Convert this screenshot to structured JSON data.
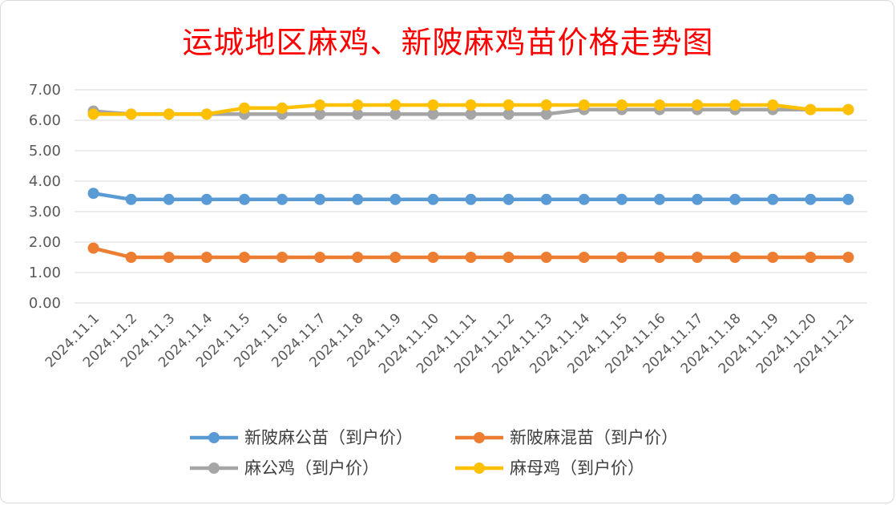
{
  "chart_data": {
    "type": "line",
    "title": "运城地区麻鸡、新陂麻鸡苗价格走势图",
    "xlabel": "",
    "ylabel": "",
    "ylim": [
      0,
      7
    ],
    "y_ticks": [
      "0.00",
      "1.00",
      "2.00",
      "3.00",
      "4.00",
      "5.00",
      "6.00",
      "7.00"
    ],
    "grid": true,
    "legend_position": "bottom",
    "categories": [
      "2024.11.1",
      "2024.11.2",
      "2024.11.3",
      "2024.11.4",
      "2024.11.5",
      "2024.11.6",
      "2024.11.7",
      "2024.11.8",
      "2024.11.9",
      "2024.11.10",
      "2024.11.11",
      "2024.11.12",
      "2024.11.13",
      "2024.11.14",
      "2024.11.15",
      "2024.11.16",
      "2024.11.17",
      "2024.11.18",
      "2024.11.19",
      "2024.11.20",
      "2024.11.21"
    ],
    "series": [
      {
        "name": "新陂麻公苗（到户价）",
        "color": "#5b9bd5",
        "values": [
          3.6,
          3.4,
          3.4,
          3.4,
          3.4,
          3.4,
          3.4,
          3.4,
          3.4,
          3.4,
          3.4,
          3.4,
          3.4,
          3.4,
          3.4,
          3.4,
          3.4,
          3.4,
          3.4,
          3.4,
          3.4
        ]
      },
      {
        "name": "新陂麻混苗（到户价）",
        "color": "#ed7d31",
        "values": [
          1.8,
          1.5,
          1.5,
          1.5,
          1.5,
          1.5,
          1.5,
          1.5,
          1.5,
          1.5,
          1.5,
          1.5,
          1.5,
          1.5,
          1.5,
          1.5,
          1.5,
          1.5,
          1.5,
          1.5,
          1.5
        ]
      },
      {
        "name": "麻公鸡（到户价）",
        "color": "#a5a5a5",
        "values": [
          6.3,
          6.2,
          6.2,
          6.2,
          6.2,
          6.2,
          6.2,
          6.2,
          6.2,
          6.2,
          6.2,
          6.2,
          6.2,
          6.35,
          6.35,
          6.35,
          6.35,
          6.35,
          6.35,
          6.35,
          6.35
        ]
      },
      {
        "name": "麻母鸡（到户价）",
        "color": "#ffc000",
        "values": [
          6.2,
          6.2,
          6.2,
          6.2,
          6.4,
          6.4,
          6.5,
          6.5,
          6.5,
          6.5,
          6.5,
          6.5,
          6.5,
          6.5,
          6.5,
          6.5,
          6.5,
          6.5,
          6.5,
          6.35,
          6.35
        ]
      }
    ]
  }
}
